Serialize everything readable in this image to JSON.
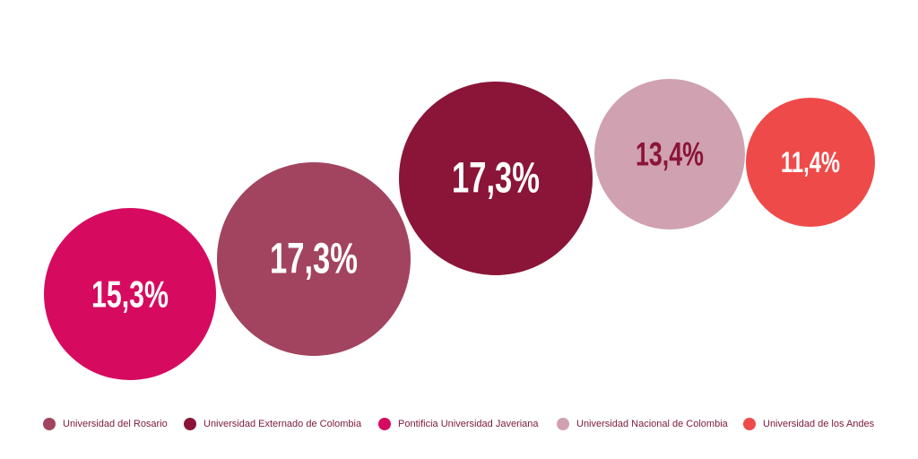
{
  "chart_data": {
    "type": "bubble",
    "series": [
      {
        "name": "Pontificia Universidad Javeriana",
        "value": 15.3,
        "label": "15,3%",
        "color": "#d60b5f",
        "label_color": "#ffffff"
      },
      {
        "name": "Universidad del Rosario",
        "value": 17.3,
        "label": "17,3%",
        "color": "#a2445f",
        "label_color": "#ffffff"
      },
      {
        "name": "Universidad Externado de Colombia",
        "value": 17.3,
        "label": "17,3%",
        "color": "#8a1538",
        "label_color": "#ffffff"
      },
      {
        "name": "Universidad Nacional de Colombia",
        "value": 13.4,
        "label": "13,4%",
        "color": "#d0a1b1",
        "label_color": "#8a1538"
      },
      {
        "name": "Universidad de los Andes",
        "value": 11.4,
        "label": "11,4%",
        "color": "#ef4a4a",
        "label_color": "#ffffff"
      }
    ],
    "legend": {
      "position": "bottom",
      "items": [
        {
          "label": "Universidad del Rosario",
          "color": "#a2445f"
        },
        {
          "label": "Universidad Externado de Colombia",
          "color": "#8a1538"
        },
        {
          "label": "Pontificia Universidad Javeriana",
          "color": "#d60b5f"
        },
        {
          "label": "Universidad Nacional de Colombia",
          "color": "#d0a1b1"
        },
        {
          "label": "Universidad de los Andes",
          "color": "#ef4a4a"
        }
      ]
    }
  }
}
